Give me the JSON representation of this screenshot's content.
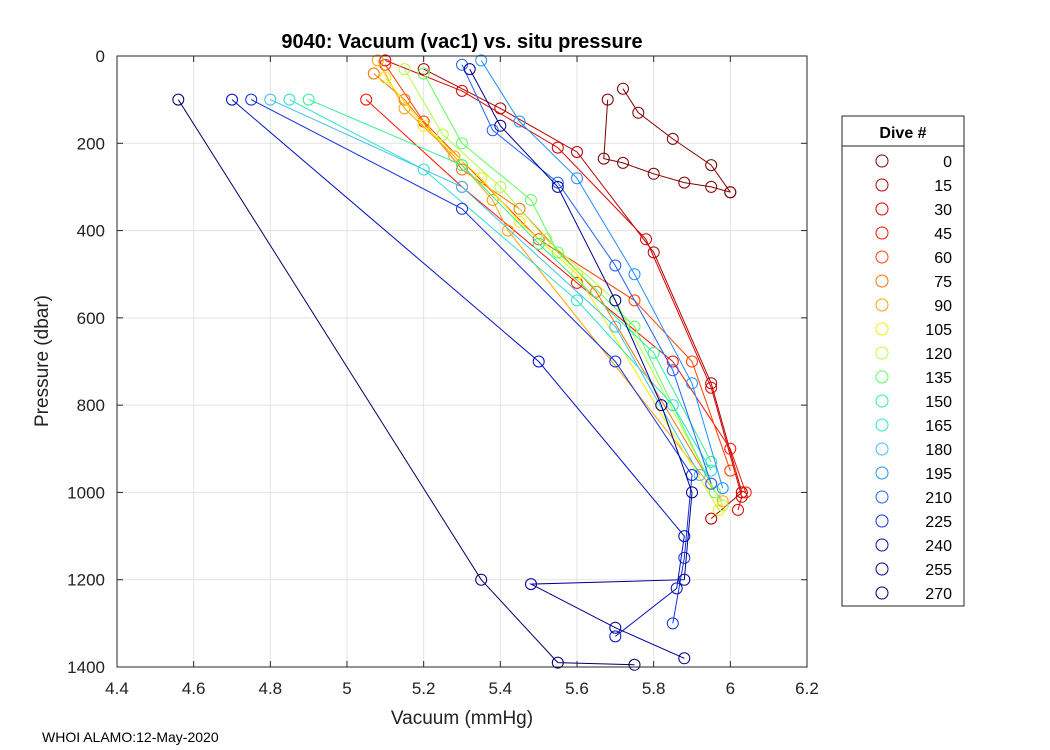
{
  "chart_data": {
    "type": "scatter",
    "title": "9040: Vacuum (vac1) vs. situ pressure",
    "xlabel": "Vacuum (mmHg)",
    "ylabel": "Pressure (dbar)",
    "xlim": [
      4.4,
      6.2
    ],
    "ylim": [
      0,
      1400
    ],
    "y_reversed": true,
    "xticks": [
      "4.4",
      "4.6",
      "4.8",
      "5",
      "5.2",
      "5.4",
      "5.6",
      "5.8",
      "6",
      "6.2"
    ],
    "yticks": [
      "0",
      "200",
      "400",
      "600",
      "800",
      "1000",
      "1200",
      "1400"
    ],
    "grid": true,
    "legend": {
      "title": "Dive #",
      "placement": "right-outside",
      "entries": [
        {
          "label": "0",
          "color": "#800000"
        },
        {
          "label": "15",
          "color": "#b00000"
        },
        {
          "label": "30",
          "color": "#e00000"
        },
        {
          "label": "45",
          "color": "#ff1000"
        },
        {
          "label": "60",
          "color": "#ff4000"
        },
        {
          "label": "75",
          "color": "#ff7000"
        },
        {
          "label": "90",
          "color": "#ffa000"
        },
        {
          "label": "105",
          "color": "#f0f000"
        },
        {
          "label": "120",
          "color": "#b0ff40"
        },
        {
          "label": "135",
          "color": "#60ff60"
        },
        {
          "label": "150",
          "color": "#30f090"
        },
        {
          "label": "165",
          "color": "#30e0d0"
        },
        {
          "label": "180",
          "color": "#40c0f0"
        },
        {
          "label": "195",
          "color": "#2090ff"
        },
        {
          "label": "210",
          "color": "#2060ff"
        },
        {
          "label": "225",
          "color": "#1030e0"
        },
        {
          "label": "240",
          "color": "#0010c0"
        },
        {
          "label": "255",
          "color": "#000090"
        },
        {
          "label": "270",
          "color": "#000066"
        }
      ]
    },
    "series": [
      {
        "name": "0",
        "color": "#800000",
        "points": [
          [
            5.68,
            100
          ],
          [
            5.67,
            235
          ],
          [
            5.72,
            245
          ],
          [
            5.8,
            270
          ],
          [
            5.88,
            290
          ],
          [
            5.95,
            300
          ],
          [
            6.0,
            312
          ]
        ]
      },
      {
        "name": "0b",
        "color": "#800000",
        "points": [
          [
            5.72,
            75
          ],
          [
            5.76,
            130
          ],
          [
            5.85,
            190
          ],
          [
            5.95,
            250
          ],
          [
            6.0,
            312
          ]
        ]
      },
      {
        "name": "15",
        "color": "#b00000",
        "points": [
          [
            5.2,
            30
          ],
          [
            5.4,
            120
          ],
          [
            5.6,
            220
          ],
          [
            5.8,
            450
          ],
          [
            5.95,
            750
          ],
          [
            6.03,
            1000
          ],
          [
            5.95,
            1060
          ]
        ]
      },
      {
        "name": "30",
        "color": "#e00000",
        "points": [
          [
            5.1,
            10
          ],
          [
            5.3,
            80
          ],
          [
            5.55,
            210
          ],
          [
            5.78,
            420
          ],
          [
            5.95,
            760
          ],
          [
            6.03,
            1010
          ],
          [
            6.02,
            1040
          ]
        ]
      },
      {
        "name": "45",
        "color": "#ff1000",
        "points": [
          [
            5.05,
            100
          ],
          [
            5.3,
            300
          ],
          [
            5.6,
            520
          ],
          [
            5.85,
            700
          ],
          [
            6.0,
            900
          ],
          [
            6.04,
            1000
          ]
        ]
      },
      {
        "name": "60",
        "color": "#ff4000",
        "points": [
          [
            5.1,
            20
          ],
          [
            5.2,
            150
          ],
          [
            5.5,
            420
          ],
          [
            5.75,
            560
          ],
          [
            5.9,
            700
          ],
          [
            6.0,
            950
          ]
        ]
      },
      {
        "name": "75",
        "color": "#ff7000",
        "points": [
          [
            5.07,
            40
          ],
          [
            5.15,
            100
          ],
          [
            5.3,
            260
          ],
          [
            5.45,
            350
          ],
          [
            5.65,
            540
          ],
          [
            5.95,
            980
          ]
        ]
      },
      {
        "name": "90",
        "color": "#ffa000",
        "points": [
          [
            5.08,
            10
          ],
          [
            5.15,
            120
          ],
          [
            5.28,
            230
          ],
          [
            5.38,
            330
          ],
          [
            5.42,
            400
          ],
          [
            5.98,
            1020
          ]
        ]
      },
      {
        "name": "105",
        "color": "#f0f000",
        "points": [
          [
            5.1,
            50
          ],
          [
            5.2,
            160
          ],
          [
            5.35,
            280
          ],
          [
            5.45,
            380
          ],
          [
            5.6,
            500
          ],
          [
            5.97,
            1040
          ]
        ]
      },
      {
        "name": "120",
        "color": "#b0ff40",
        "points": [
          [
            5.15,
            30
          ],
          [
            5.25,
            180
          ],
          [
            5.4,
            300
          ],
          [
            5.52,
            420
          ],
          [
            5.7,
            560
          ],
          [
            5.98,
            1030
          ]
        ]
      },
      {
        "name": "135",
        "color": "#60ff60",
        "points": [
          [
            5.2,
            40
          ],
          [
            5.3,
            200
          ],
          [
            5.48,
            330
          ],
          [
            5.55,
            450
          ],
          [
            5.75,
            620
          ],
          [
            5.96,
            1000
          ]
        ]
      },
      {
        "name": "150",
        "color": "#30f090",
        "points": [
          [
            4.9,
            100
          ],
          [
            5.3,
            250
          ],
          [
            5.5,
            430
          ],
          [
            5.8,
            680
          ],
          [
            5.95,
            930
          ]
        ]
      },
      {
        "name": "165",
        "color": "#30e0d0",
        "points": [
          [
            4.85,
            100
          ],
          [
            5.2,
            260
          ],
          [
            5.6,
            560
          ],
          [
            5.85,
            800
          ],
          [
            5.95,
            950
          ]
        ]
      },
      {
        "name": "180",
        "color": "#40c0f0",
        "points": [
          [
            4.8,
            100
          ],
          [
            5.3,
            300
          ],
          [
            5.7,
            620
          ],
          [
            5.92,
            960
          ]
        ]
      },
      {
        "name": "195",
        "color": "#2090ff",
        "points": [
          [
            5.35,
            10
          ],
          [
            5.45,
            150
          ],
          [
            5.6,
            280
          ],
          [
            5.75,
            500
          ],
          [
            5.9,
            750
          ],
          [
            5.98,
            990
          ]
        ]
      },
      {
        "name": "210",
        "color": "#2060ff",
        "points": [
          [
            5.3,
            20
          ],
          [
            5.38,
            170
          ],
          [
            5.55,
            290
          ],
          [
            5.7,
            480
          ],
          [
            5.85,
            720
          ],
          [
            5.95,
            980
          ]
        ]
      },
      {
        "name": "225",
        "color": "#1030e0",
        "points": [
          [
            4.75,
            100
          ],
          [
            5.3,
            350
          ],
          [
            5.7,
            700
          ],
          [
            5.9,
            960
          ],
          [
            5.88,
            1150
          ],
          [
            5.85,
            1300
          ]
        ]
      },
      {
        "name": "240",
        "color": "#0010c0",
        "points": [
          [
            4.7,
            100
          ],
          [
            5.5,
            700
          ],
          [
            5.88,
            1100
          ],
          [
            5.86,
            1220
          ],
          [
            5.7,
            1330
          ]
        ]
      },
      {
        "name": "255",
        "color": "#000090",
        "points": [
          [
            5.32,
            30
          ],
          [
            5.4,
            160
          ],
          [
            5.55,
            300
          ],
          [
            5.7,
            560
          ],
          [
            5.82,
            800
          ],
          [
            5.9,
            1000
          ],
          [
            5.88,
            1200
          ],
          [
            5.48,
            1210
          ],
          [
            5.7,
            1310
          ],
          [
            5.88,
            1380
          ]
        ]
      },
      {
        "name": "270",
        "color": "#000066",
        "points": [
          [
            4.56,
            100
          ],
          [
            5.35,
            1200
          ],
          [
            5.55,
            1390
          ],
          [
            5.75,
            1395
          ]
        ]
      }
    ]
  },
  "footer": {
    "text": "WHOI ALAMO:12-May-2020"
  }
}
